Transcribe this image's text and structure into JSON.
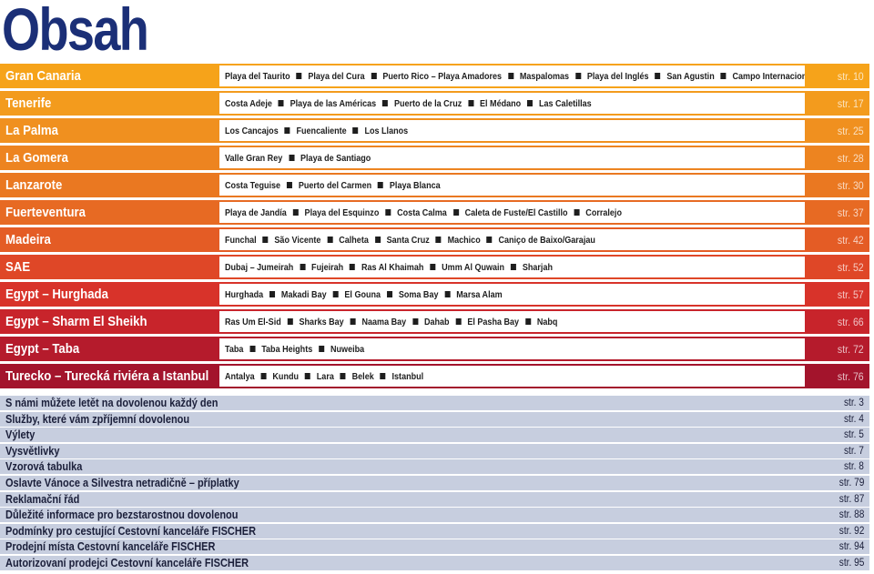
{
  "title": "Obsah",
  "destinations": [
    {
      "name": "Gran Canaria",
      "page": "str. 10",
      "color": "#f6a31a",
      "page_color": "#f6a31a",
      "places": [
        "Playa del Taurito",
        "Playa del Cura",
        "Puerto Rico – Playa Amadores",
        "Maspalomas",
        "Playa del Inglés",
        "San Agustin",
        "Campo Internacional"
      ]
    },
    {
      "name": "Tenerife",
      "page": "str. 17",
      "color": "#f39b1d",
      "page_color": "#f39b1d",
      "places": [
        "Costa Adeje",
        "Playa de las Américas",
        "Puerto de la Cruz",
        "El Médano",
        "Las Caletillas"
      ]
    },
    {
      "name": "La Palma",
      "page": "str. 25",
      "color": "#f0901f",
      "page_color": "#f0901f",
      "places": [
        "Los Cancajos",
        "Fuencaliente",
        "Los Llanos"
      ]
    },
    {
      "name": "La Gomera",
      "page": "str. 28",
      "color": "#ed8420",
      "page_color": "#ed8420",
      "places": [
        "Valle Gran Rey",
        "Playa de Santiago"
      ]
    },
    {
      "name": "Lanzarote",
      "page": "str. 30",
      "color": "#ea7821",
      "page_color": "#ea7821",
      "places": [
        "Costa Teguise",
        "Puerto del Carmen",
        "Playa Blanca"
      ]
    },
    {
      "name": "Fuerteventura",
      "page": "str. 37",
      "color": "#e76a23",
      "page_color": "#e76a23",
      "places": [
        "Playa de Jandía",
        "Playa del Esquinzo",
        "Costa Calma",
        "Caleta de Fuste/El Castillo",
        "Corralejo"
      ]
    },
    {
      "name": "Madeira",
      "page": "str. 42",
      "color": "#e45c25",
      "page_color": "#e45c25",
      "places": [
        "Funchal",
        "São Vicente",
        "Calheta",
        "Santa Cruz",
        "Machico",
        "Caniço de Baixo/Garajau"
      ]
    },
    {
      "name": "SAE",
      "page": "str. 52",
      "color": "#df4727",
      "page_color": "#df4727",
      "places": [
        "Dubaj – Jumeirah",
        "Fujeirah",
        "Ras Al Khaimah",
        "Umm Al Quwain",
        "Sharjah"
      ]
    },
    {
      "name": "Egypt – Hurghada",
      "page": "str. 57",
      "color": "#d8332a",
      "page_color": "#d8332a",
      "places": [
        "Hurghada",
        "Makadi Bay",
        "El Gouna",
        "Soma Bay",
        "Marsa Alam"
      ]
    },
    {
      "name": "Egypt – Sharm El Sheikh",
      "page": "str. 66",
      "color": "#c8242b",
      "page_color": "#c8242b",
      "places": [
        "Ras Um El-Sid",
        "Sharks Bay",
        "Naama Bay",
        "Dahab",
        "El Pasha Bay",
        "Nabq"
      ]
    },
    {
      "name": "Egypt – Taba",
      "page": "str. 72",
      "color": "#b51b2c",
      "page_color": "#b51b2c",
      "places": [
        "Taba",
        "Taba Heights",
        "Nuweiba"
      ]
    },
    {
      "name": "Turecko – Turecká riviéra a Istanbul",
      "page": "str. 76",
      "color": "#a3142c",
      "page_color": "#a3142c",
      "places": [
        "Antalya",
        "Kundu",
        "Lara",
        "Belek",
        "Istanbul"
      ]
    }
  ],
  "general": [
    {
      "label": "S námi můžete letět na dovolenou každý den",
      "page": "str. 3"
    },
    {
      "label": "Služby, které vám zpříjemní dovolenou",
      "page": "str. 4"
    },
    {
      "label": "Výlety",
      "page": "str. 5"
    },
    {
      "label": "Vysvětlivky",
      "page": "str. 7"
    },
    {
      "label": "Vzorová tabulka",
      "page": "str. 8"
    },
    {
      "label": "Oslavte Vánoce a Silvestra netradičně – příplatky",
      "page": "str. 79"
    },
    {
      "label": "Reklamační řád",
      "page": "str. 87"
    },
    {
      "label": "Důležité informace pro bezstarostnou dovolenou",
      "page": "str. 88"
    },
    {
      "label": "Podmínky pro cestující Cestovní kanceláře FISCHER",
      "page": "str. 92"
    },
    {
      "label": "Prodejní místa Cestovní kanceláře FISCHER",
      "page": "str. 94"
    },
    {
      "label": "Autorizovaní prodejci Cestovní kanceláře FISCHER",
      "page": "str. 95"
    }
  ]
}
